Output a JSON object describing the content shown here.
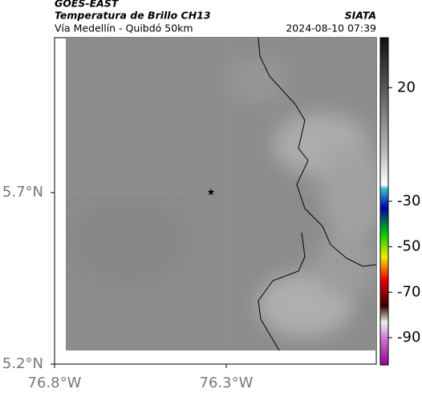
{
  "header": {
    "title": "GOES-EAST",
    "subtitle": "Temperatura de Brillo CH13",
    "route": "Vía Medellín - Quibdó 50km",
    "source": "SIATA",
    "datetime": "2024-08-10 07:39"
  },
  "map": {
    "xlim": [
      -76.8,
      -75.863
    ],
    "ylim": [
      5.2,
      6.152
    ],
    "xticks": [
      {
        "value": -76.8,
        "label": "76.8°W"
      },
      {
        "value": -76.3,
        "label": "76.3°W"
      }
    ],
    "yticks": [
      {
        "value": 5.2,
        "label": "5.2°N"
      },
      {
        "value": 5.7,
        "label": "5.7°N"
      }
    ]
  },
  "colorbar": {
    "lim": [
      -102,
      42
    ],
    "ticks": [
      20,
      -30,
      -50,
      -70,
      -90
    ]
  }
}
